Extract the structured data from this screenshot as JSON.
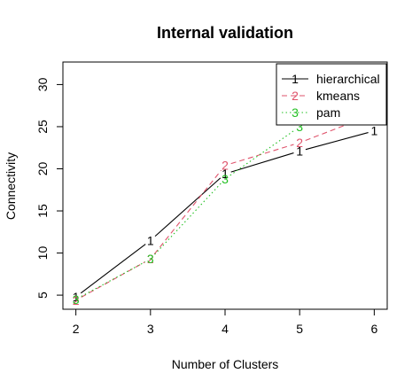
{
  "chart_data": {
    "type": "line",
    "title": "Internal validation",
    "xlabel": "Number of Clusters",
    "ylabel": "Connectivity",
    "x": [
      2,
      3,
      4,
      5,
      6
    ],
    "xlim": [
      2,
      6
    ],
    "ylim": [
      4.5,
      31.5
    ],
    "xticks": [
      "2",
      "3",
      "4",
      "5",
      "6"
    ],
    "yticks": [
      "5",
      "10",
      "15",
      "20",
      "25",
      "30"
    ],
    "grid": false,
    "legend_position": "top-right",
    "series": [
      {
        "name": "hierarchical",
        "marker": "1",
        "color": "#000000",
        "dash": "solid",
        "values": [
          4.8,
          11.5,
          19.4,
          22.1,
          24.5
        ]
      },
      {
        "name": "kmeans",
        "marker": "2",
        "color": "#DF536B",
        "dash": "dashed",
        "values": [
          4.4,
          9.3,
          20.4,
          23.1,
          26.5
        ]
      },
      {
        "name": "pam",
        "marker": "3",
        "color": "#22C022",
        "dash": "dotted",
        "values": [
          4.5,
          9.3,
          18.8,
          25.0,
          31.0
        ]
      }
    ]
  }
}
